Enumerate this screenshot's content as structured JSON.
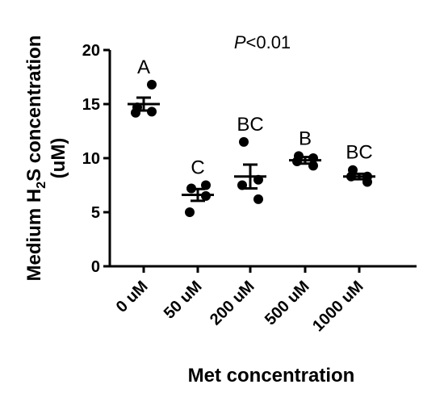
{
  "chart_data": {
    "type": "scatter",
    "annotation": {
      "p_prefix": "P",
      "p_suffix": "<0.01"
    },
    "ylabel": {
      "line1_pre": "Medium H",
      "sub": "2",
      "line1_post": "S concentration",
      "line2": "(uM)"
    },
    "xlabel": "Met concentration",
    "ylim": [
      0,
      20
    ],
    "yticks": [
      0,
      5,
      10,
      15,
      20
    ],
    "groups": [
      {
        "category": "0 uM",
        "letter": "A",
        "points": [
          14.7,
          16.8,
          14.2,
          14.3
        ],
        "mean": 15.0,
        "sem": 0.6
      },
      {
        "category": "50 uM",
        "letter": "C",
        "points": [
          7.2,
          7.5,
          5.0,
          6.5
        ],
        "mean": 6.6,
        "sem": 0.55
      },
      {
        "category": "200 uM",
        "letter": "BC",
        "points": [
          11.5,
          8.0,
          7.5,
          6.2
        ],
        "mean": 8.3,
        "sem": 1.1
      },
      {
        "category": "500 uM",
        "letter": "B",
        "points": [
          10.2,
          10.0,
          9.7,
          9.3
        ],
        "mean": 9.8,
        "sem": 0.3
      },
      {
        "category": "1000 uM",
        "letter": "BC",
        "points": [
          8.9,
          8.3,
          8.3,
          7.8
        ],
        "mean": 8.3,
        "sem": 0.25
      }
    ]
  }
}
